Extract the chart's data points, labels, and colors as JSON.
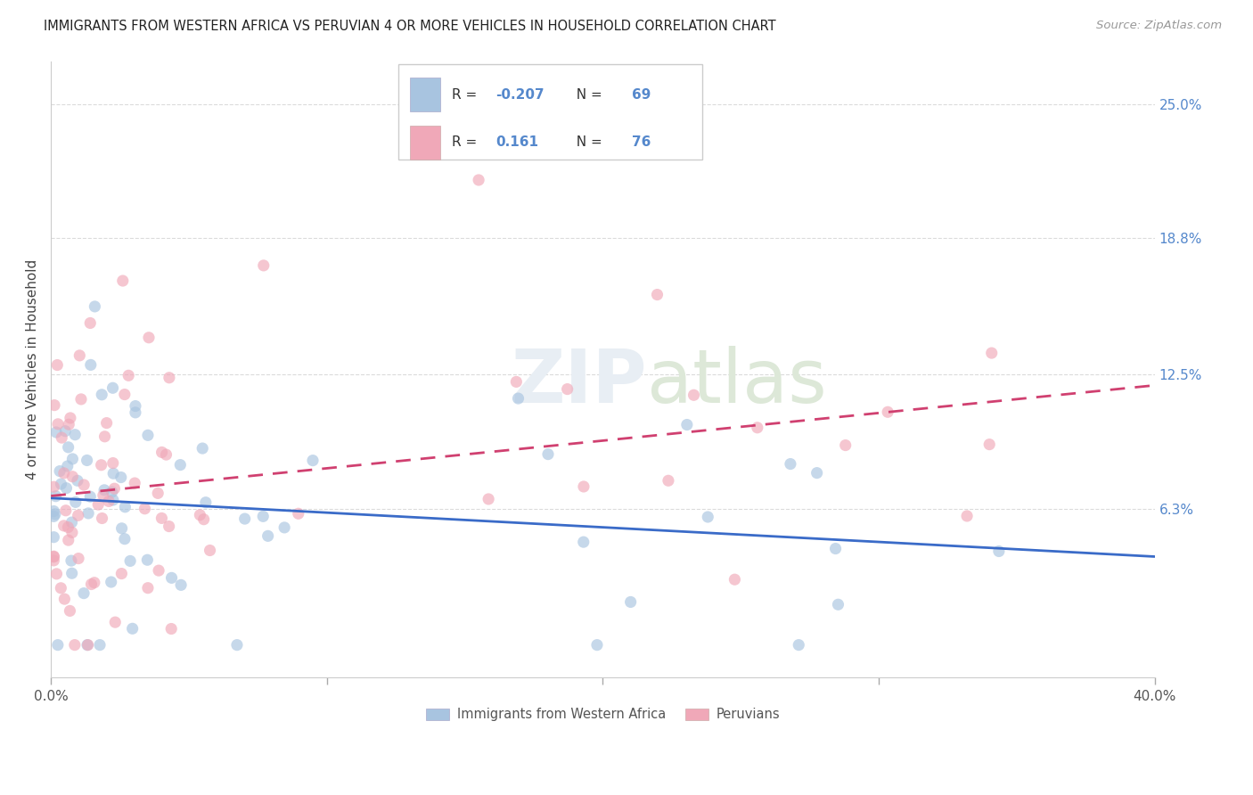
{
  "title": "IMMIGRANTS FROM WESTERN AFRICA VS PERUVIAN 4 OR MORE VEHICLES IN HOUSEHOLD CORRELATION CHART",
  "source": "Source: ZipAtlas.com",
  "ylabel": "4 or more Vehicles in Household",
  "ytick_labels": [
    "25.0%",
    "18.8%",
    "12.5%",
    "6.3%"
  ],
  "ytick_values": [
    0.25,
    0.188,
    0.125,
    0.063
  ],
  "xlim": [
    0.0,
    0.4
  ],
  "ylim": [
    -0.015,
    0.27
  ],
  "blue_R": -0.207,
  "blue_N": 69,
  "pink_R": 0.161,
  "pink_N": 76,
  "blue_color": "#A8C4E0",
  "pink_color": "#F0A8B8",
  "blue_line_color": "#3A6BC8",
  "pink_line_color": "#D04070",
  "legend_label_blue": "Immigrants from Western Africa",
  "legend_label_pink": "Peruvians",
  "legend_text_color": "#5588CC",
  "background_color": "#ffffff",
  "grid_color": "#cccccc"
}
